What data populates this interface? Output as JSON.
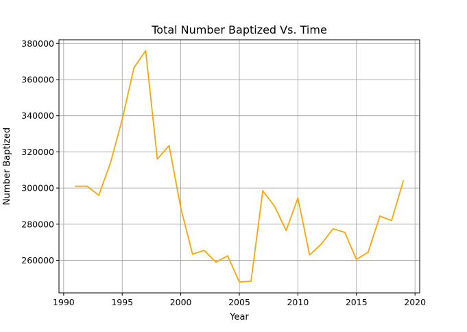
{
  "chart_data": {
    "type": "line",
    "title": "Total Number Baptized Vs. Time",
    "xlabel": "Year",
    "ylabel": "Number Baptized",
    "xlim": [
      1989.6,
      2020.4
    ],
    "ylim": [
      242000,
      382000
    ],
    "xticks": [
      1990,
      1995,
      2000,
      2005,
      2010,
      2015,
      2020
    ],
    "yticks": [
      260000,
      280000,
      300000,
      320000,
      340000,
      360000,
      380000
    ],
    "grid": true,
    "line_color": "#ffa500",
    "series": [
      {
        "x": [
          1991,
          1992,
          1993,
          1994,
          1995,
          1996,
          1997,
          1998,
          1999,
          2000,
          2001,
          2002,
          2003,
          2004,
          2005,
          2006,
          2007,
          2008,
          2009,
          2010,
          2011,
          2012,
          2013,
          2014,
          2015,
          2016,
          2017,
          2018,
          2019
        ],
        "values": [
          301000,
          301000,
          296000,
          314000,
          338000,
          366500,
          376000,
          316000,
          323500,
          289000,
          263500,
          265500,
          259000,
          262500,
          248000,
          248500,
          298500,
          290000,
          276500,
          294500,
          263000,
          269000,
          277500,
          275500,
          260500,
          264500,
          284500,
          282000,
          304000
        ]
      }
    ]
  }
}
